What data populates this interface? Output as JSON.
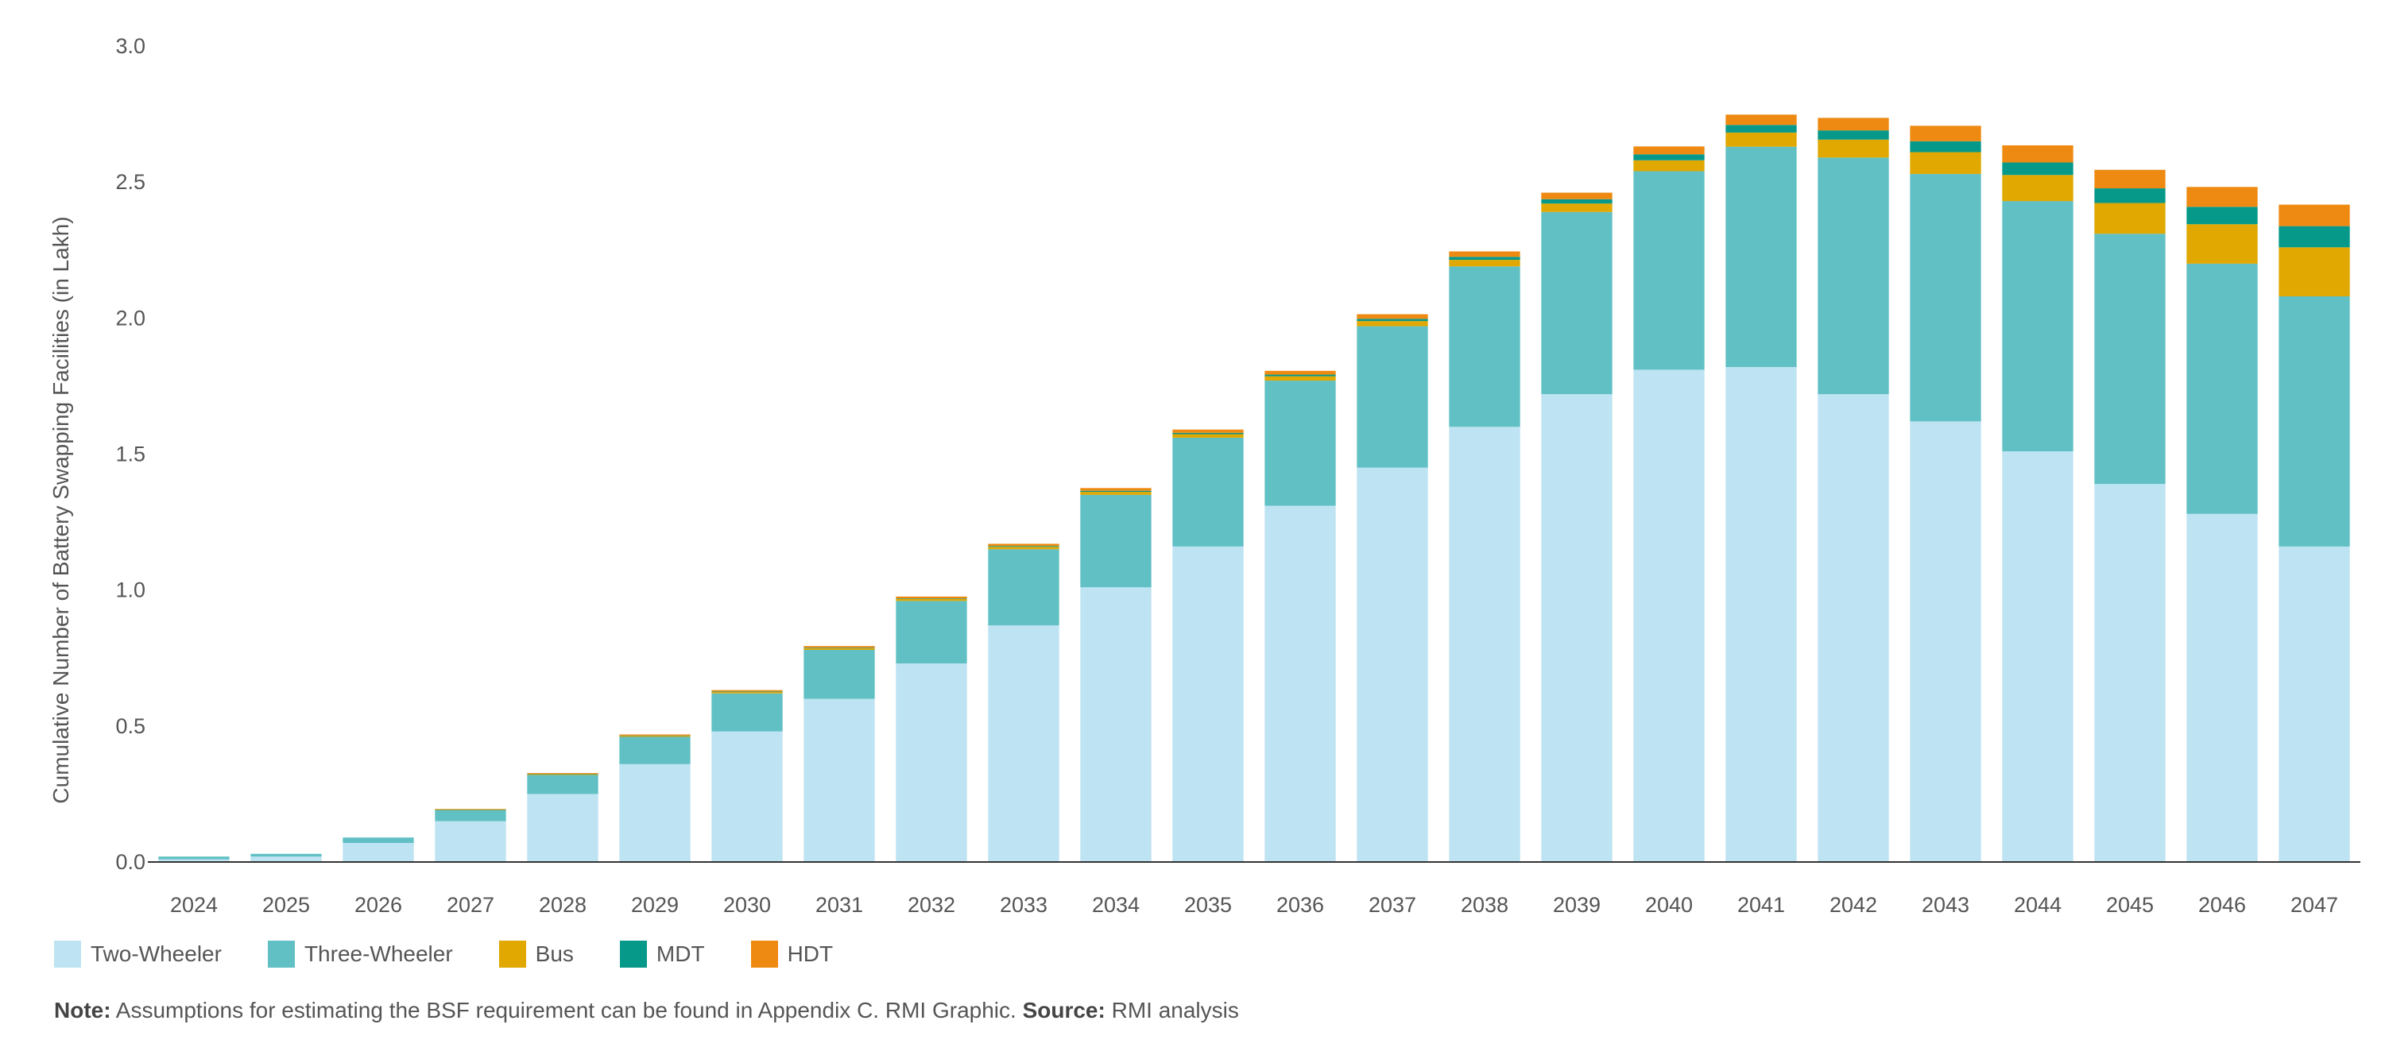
{
  "chart_data": {
    "type": "bar",
    "stacked": true,
    "title": "",
    "xlabel": "",
    "ylabel": "Cumulative Number of Battery Swapping Facilities (in Lakh)",
    "ylim": [
      0,
      3.0
    ],
    "yticks": [
      "0.0",
      "0.5",
      "1.0",
      "1.5",
      "2.0",
      "2.5",
      "3.0"
    ],
    "grid": false,
    "legend_position": "bottom-left",
    "categories": [
      "2024",
      "2025",
      "2026",
      "2027",
      "2028",
      "2029",
      "2030",
      "2031",
      "2032",
      "2033",
      "2034",
      "2035",
      "2036",
      "2037",
      "2038",
      "2039",
      "2040",
      "2041",
      "2042",
      "2043",
      "2044",
      "2045",
      "2046",
      "2047"
    ],
    "series": [
      {
        "name": "Two-Wheeler",
        "color": "#bee3f2",
        "values": [
          0.01,
          0.02,
          0.07,
          0.15,
          0.25,
          0.36,
          0.48,
          0.6,
          0.73,
          0.87,
          1.01,
          1.16,
          1.31,
          1.45,
          1.6,
          1.72,
          1.81,
          1.82,
          1.72,
          1.62,
          1.51,
          1.39,
          1.28,
          1.16
        ]
      },
      {
        "name": "Three-Wheeler",
        "color": "#60c0c4",
        "values": [
          0.01,
          0.01,
          0.02,
          0.04,
          0.07,
          0.1,
          0.14,
          0.18,
          0.23,
          0.28,
          0.34,
          0.4,
          0.46,
          0.52,
          0.59,
          0.67,
          0.73,
          0.81,
          0.87,
          0.91,
          0.92,
          0.92,
          0.92,
          0.92
        ]
      },
      {
        "name": "Bus",
        "color": "#e0a800",
        "values": [
          0.0,
          0.0,
          0.0,
          0.002,
          0.003,
          0.004,
          0.005,
          0.006,
          0.007,
          0.009,
          0.011,
          0.013,
          0.016,
          0.019,
          0.024,
          0.031,
          0.04,
          0.052,
          0.066,
          0.08,
          0.096,
          0.113,
          0.145,
          0.18
        ]
      },
      {
        "name": "MDT",
        "color": "#06998a",
        "values": [
          0.0,
          0.0,
          0.0,
          0.001,
          0.001,
          0.001,
          0.002,
          0.002,
          0.002,
          0.003,
          0.004,
          0.005,
          0.006,
          0.008,
          0.011,
          0.016,
          0.022,
          0.028,
          0.034,
          0.04,
          0.046,
          0.054,
          0.064,
          0.078
        ]
      },
      {
        "name": "HDT",
        "color": "#ee8a11",
        "values": [
          0.0,
          0.0,
          0.0,
          0.002,
          0.003,
          0.004,
          0.005,
          0.006,
          0.007,
          0.008,
          0.01,
          0.012,
          0.014,
          0.017,
          0.02,
          0.024,
          0.029,
          0.038,
          0.046,
          0.057,
          0.063,
          0.068,
          0.073,
          0.079
        ]
      }
    ]
  },
  "note": {
    "note_label": "Note:",
    "note_text": " Assumptions for estimating the BSF requirement can be found in Appendix C. RMI Graphic. ",
    "source_label": "Source:",
    "source_text": " RMI analysis"
  }
}
